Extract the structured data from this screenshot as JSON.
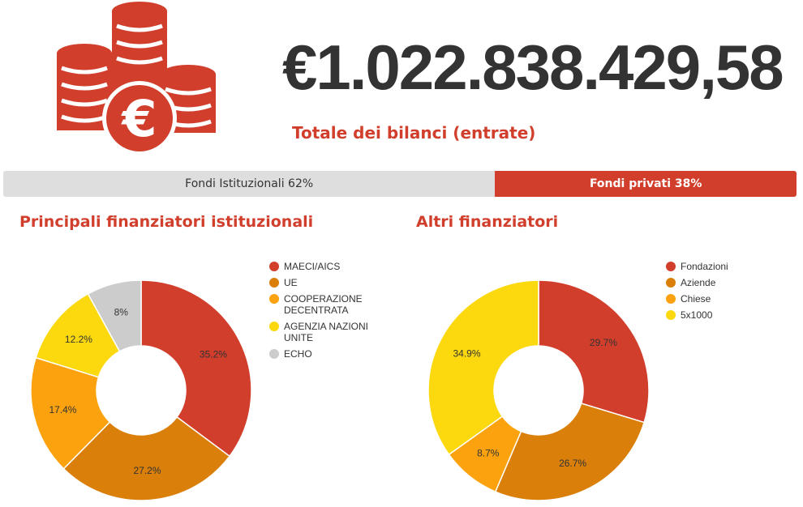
{
  "header": {
    "total_amount": "€1.022.838.429,58",
    "total_label": "Totale dei bilanci (entrate)",
    "icon": "euro-coins-icon",
    "accent_color": "#d13f2c"
  },
  "funding_split": {
    "institutional": {
      "label": "Fondi Istituzionali 62%",
      "percent": 62,
      "color": "#dedede"
    },
    "private": {
      "label": "Fondi privati 38%",
      "percent": 38,
      "color": "#d13f2c"
    }
  },
  "sections": {
    "institutional_title": "Principali finanziatori istituzionali",
    "others_title": "Altri finanziatori"
  },
  "chart_data": [
    {
      "type": "pie",
      "donut": true,
      "title": "Principali finanziatori istituzionali",
      "legend_position": "right",
      "categories": [
        "MAECI/AICS",
        "UE",
        "COOPERAZIONE DECENTRATA",
        "AGENZIA NAZIONI UNITE",
        "ECHO"
      ],
      "values": [
        35.2,
        27.2,
        17.4,
        12.2,
        8
      ],
      "labels": [
        "35.2%",
        "27.2%",
        "17.4%",
        "12.2%",
        "8%"
      ],
      "colors": [
        "#d13f2c",
        "#d97f0a",
        "#fba20e",
        "#fbd90e",
        "#cccccc"
      ]
    },
    {
      "type": "pie",
      "donut": true,
      "title": "Altri finanziatori",
      "legend_position": "right",
      "categories": [
        "Fondazioni",
        "Aziende",
        "Chiese",
        "5x1000"
      ],
      "values": [
        29.7,
        26.7,
        8.7,
        34.9
      ],
      "labels": [
        "29.7%",
        "26.7%",
        "8.7%",
        "34.9%"
      ],
      "colors": [
        "#d13f2c",
        "#d97f0a",
        "#fba20e",
        "#fbd90e"
      ]
    }
  ]
}
